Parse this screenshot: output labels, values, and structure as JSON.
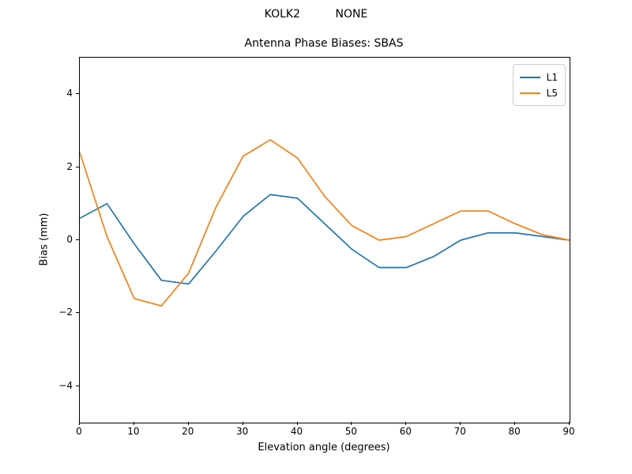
{
  "suptitle": "KOLK2          NONE",
  "chart_data": {
    "type": "line",
    "title": "Antenna Phase Biases: SBAS",
    "xlabel": "Elevation angle (degrees)",
    "ylabel": "Bias (mm)",
    "xlim": [
      0,
      90
    ],
    "ylim": [
      -5,
      5
    ],
    "x_ticks": [
      0,
      10,
      20,
      30,
      40,
      50,
      60,
      70,
      80,
      90
    ],
    "y_ticks": [
      -4,
      -2,
      0,
      2,
      4
    ],
    "grid": false,
    "legend_position": "upper right",
    "x": [
      0,
      5,
      10,
      15,
      20,
      25,
      30,
      35,
      40,
      45,
      50,
      55,
      60,
      65,
      70,
      75,
      80,
      85,
      90
    ],
    "series": [
      {
        "name": "L1",
        "color": "#1f77b4",
        "values": [
          0.6,
          1.0,
          -0.1,
          -1.1,
          -1.2,
          -0.3,
          0.65,
          1.25,
          1.15,
          0.45,
          -0.25,
          -0.75,
          -0.75,
          -0.45,
          0.0,
          0.2,
          0.2,
          0.1,
          0.0
        ]
      },
      {
        "name": "L5",
        "color": "#ff7f0e",
        "values": [
          2.4,
          0.1,
          -1.6,
          -1.8,
          -0.9,
          0.9,
          2.3,
          2.75,
          2.25,
          1.2,
          0.4,
          0.0,
          0.1,
          0.45,
          0.8,
          0.8,
          0.45,
          0.15,
          0.0
        ]
      }
    ]
  }
}
